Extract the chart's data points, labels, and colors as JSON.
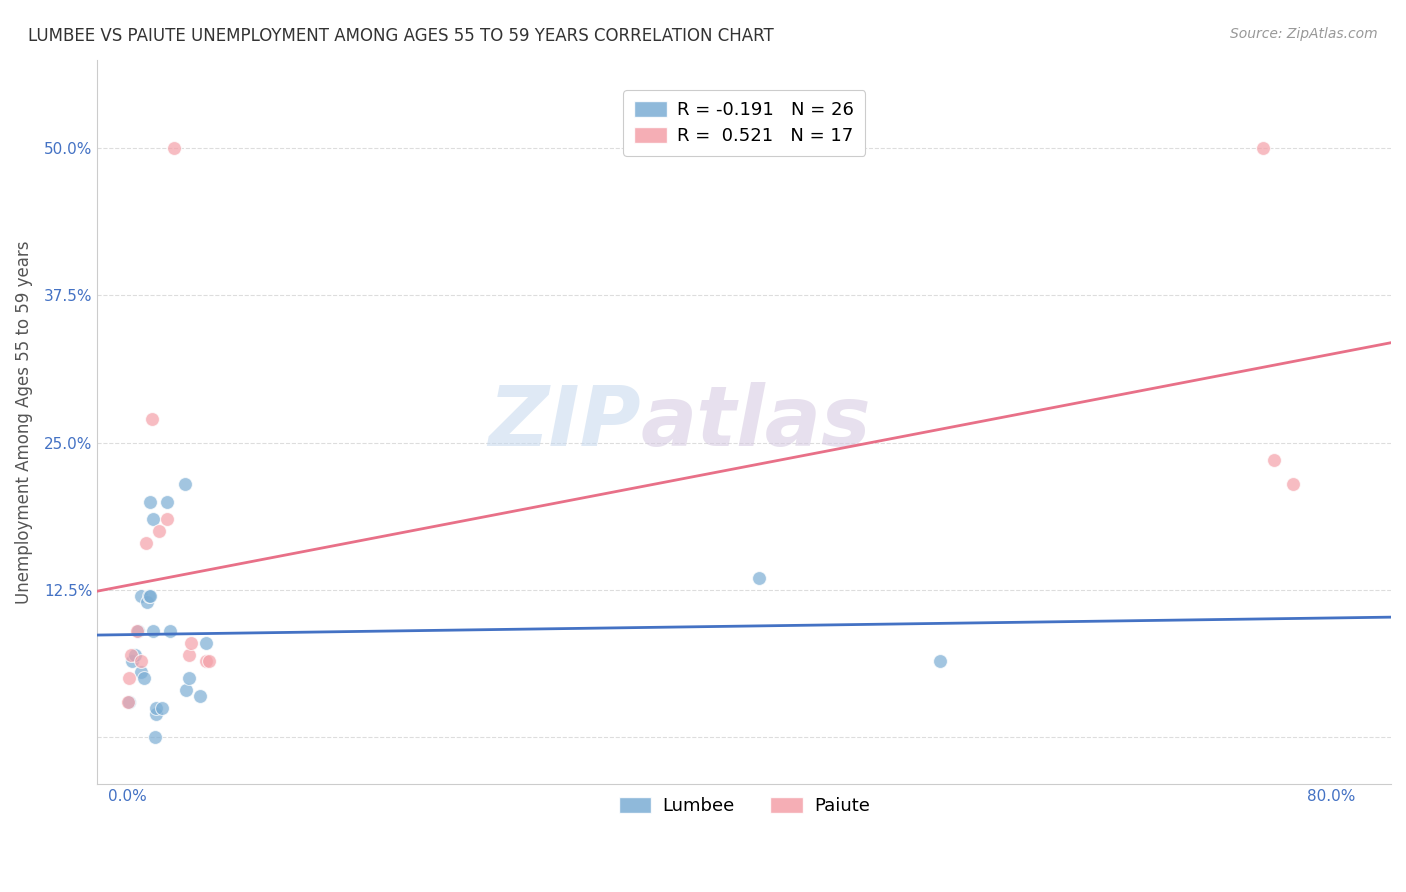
{
  "title": "LUMBEE VS PAIUTE UNEMPLOYMENT AMONG AGES 55 TO 59 YEARS CORRELATION CHART",
  "source": "Source: ZipAtlas.com",
  "ylabel": "Unemployment Among Ages 55 to 59 years",
  "lumbee_R": -0.191,
  "lumbee_N": 26,
  "paiute_R": 0.521,
  "paiute_N": 17,
  "lumbee_color": "#7BADD4",
  "paiute_color": "#F4A0A8",
  "lumbee_line_color": "#4472C4",
  "paiute_line_color": "#E87088",
  "lumbee_x": [
    0.001,
    0.003,
    0.005,
    0.007,
    0.009,
    0.009,
    0.011,
    0.013,
    0.014,
    0.015,
    0.015,
    0.017,
    0.017,
    0.018,
    0.019,
    0.019,
    0.023,
    0.026,
    0.028,
    0.038,
    0.039,
    0.041,
    0.048,
    0.052,
    0.42,
    0.54
  ],
  "lumbee_y": [
    0.03,
    0.065,
    0.07,
    0.09,
    0.12,
    0.055,
    0.05,
    0.115,
    0.12,
    0.12,
    0.2,
    0.185,
    0.09,
    0.0,
    0.02,
    0.025,
    0.025,
    0.2,
    0.09,
    0.215,
    0.04,
    0.05,
    0.035,
    0.08,
    0.135,
    0.065
  ],
  "paiute_x": [
    0.0,
    0.001,
    0.002,
    0.006,
    0.009,
    0.012,
    0.016,
    0.021,
    0.026,
    0.031,
    0.041,
    0.042,
    0.052,
    0.054,
    0.755,
    0.762,
    0.775
  ],
  "paiute_y": [
    0.03,
    0.05,
    0.07,
    0.09,
    0.065,
    0.165,
    0.27,
    0.175,
    0.185,
    0.5,
    0.07,
    0.08,
    0.065,
    0.065,
    0.5,
    0.235,
    0.215
  ],
  "xlim": [
    -0.02,
    0.84
  ],
  "ylim": [
    -0.04,
    0.575
  ],
  "yticks": [
    0.0,
    0.125,
    0.25,
    0.375,
    0.5
  ],
  "ytick_labels": [
    "",
    "12.5%",
    "25.0%",
    "37.5%",
    "50.0%"
  ],
  "xticks": [
    0.0,
    0.1,
    0.2,
    0.3,
    0.4,
    0.5,
    0.6,
    0.7,
    0.8
  ],
  "xtick_labels": [
    "0.0%",
    "",
    "",
    "",
    "",
    "",
    "",
    "",
    "80.0%"
  ],
  "watermark_zip": "ZIP",
  "watermark_atlas": "atlas",
  "marker_size": 100,
  "grid_color": "#DDDDDD",
  "title_fontsize": 12,
  "source_fontsize": 10,
  "tick_fontsize": 11,
  "ylabel_fontsize": 12,
  "legend_fontsize": 13
}
